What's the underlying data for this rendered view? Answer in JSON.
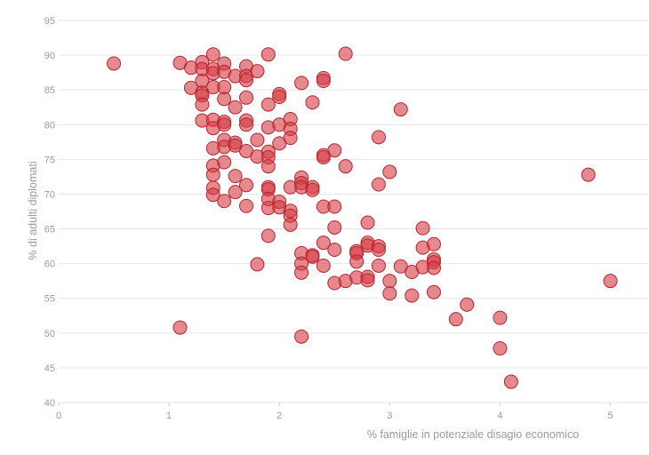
{
  "chart_data": {
    "type": "scatter",
    "xlabel": "% famiglie in potenziale disagio economico",
    "ylabel": "% di adulti diplomati",
    "xlim": [
      0,
      5.35
    ],
    "ylim": [
      40,
      95
    ],
    "x_ticks": [
      0,
      1,
      2,
      3,
      4,
      5
    ],
    "y_ticks": [
      40,
      45,
      50,
      55,
      60,
      65,
      70,
      75,
      80,
      85,
      90,
      95
    ],
    "grid": "horizontal",
    "point_color": "#d63a43",
    "point_stroke": "#b8232d",
    "points": [
      [
        0.5,
        88.8
      ],
      [
        1.1,
        88.9
      ],
      [
        1.1,
        50.8
      ],
      [
        1.2,
        88.2
      ],
      [
        1.2,
        85.3
      ],
      [
        1.3,
        89.0
      ],
      [
        1.3,
        88.0
      ],
      [
        1.3,
        86.3
      ],
      [
        1.3,
        84.6
      ],
      [
        1.3,
        84.2
      ],
      [
        1.3,
        82.9
      ],
      [
        1.3,
        80.6
      ],
      [
        1.4,
        90.1
      ],
      [
        1.4,
        88.0
      ],
      [
        1.4,
        87.4
      ],
      [
        1.4,
        85.4
      ],
      [
        1.4,
        80.7
      ],
      [
        1.4,
        79.5
      ],
      [
        1.4,
        76.6
      ],
      [
        1.4,
        74.1
      ],
      [
        1.4,
        72.8
      ],
      [
        1.4,
        70.9
      ],
      [
        1.4,
        69.9
      ],
      [
        1.5,
        88.8
      ],
      [
        1.5,
        87.6
      ],
      [
        1.5,
        85.4
      ],
      [
        1.5,
        83.7
      ],
      [
        1.5,
        80.4
      ],
      [
        1.5,
        80.0
      ],
      [
        1.5,
        77.8
      ],
      [
        1.5,
        76.8
      ],
      [
        1.5,
        74.6
      ],
      [
        1.5,
        69.0
      ],
      [
        1.6,
        87.0
      ],
      [
        1.6,
        82.5
      ],
      [
        1.6,
        77.4
      ],
      [
        1.6,
        77.0
      ],
      [
        1.6,
        72.6
      ],
      [
        1.6,
        70.3
      ],
      [
        1.7,
        88.4
      ],
      [
        1.7,
        87.0
      ],
      [
        1.7,
        86.4
      ],
      [
        1.7,
        83.9
      ],
      [
        1.7,
        80.6
      ],
      [
        1.7,
        80.0
      ],
      [
        1.7,
        76.2
      ],
      [
        1.7,
        71.3
      ],
      [
        1.7,
        68.3
      ],
      [
        1.8,
        87.7
      ],
      [
        1.8,
        77.8
      ],
      [
        1.8,
        75.4
      ],
      [
        1.8,
        59.9
      ],
      [
        1.9,
        90.1
      ],
      [
        1.9,
        82.9
      ],
      [
        1.9,
        79.6
      ],
      [
        1.9,
        76.1
      ],
      [
        1.9,
        75.3
      ],
      [
        1.9,
        74.0
      ],
      [
        1.9,
        71.0
      ],
      [
        1.9,
        70.7
      ],
      [
        1.9,
        69.3
      ],
      [
        1.9,
        68.0
      ],
      [
        1.9,
        64.0
      ],
      [
        2.0,
        84.4
      ],
      [
        2.0,
        84.0
      ],
      [
        2.0,
        80.0
      ],
      [
        2.0,
        77.3
      ],
      [
        2.0,
        68.9
      ],
      [
        2.0,
        68.1
      ],
      [
        2.1,
        80.8
      ],
      [
        2.1,
        79.4
      ],
      [
        2.1,
        78.1
      ],
      [
        2.1,
        71.0
      ],
      [
        2.1,
        67.6
      ],
      [
        2.1,
        66.9
      ],
      [
        2.1,
        65.6
      ],
      [
        2.2,
        86.0
      ],
      [
        2.2,
        72.4
      ],
      [
        2.2,
        71.6
      ],
      [
        2.2,
        71.0
      ],
      [
        2.2,
        61.5
      ],
      [
        2.2,
        60.0
      ],
      [
        2.2,
        58.7
      ],
      [
        2.2,
        49.5
      ],
      [
        2.3,
        83.2
      ],
      [
        2.3,
        71.0
      ],
      [
        2.3,
        70.6
      ],
      [
        2.3,
        61.2
      ],
      [
        2.3,
        61.0
      ],
      [
        2.4,
        86.7
      ],
      [
        2.4,
        86.3
      ],
      [
        2.4,
        75.6
      ],
      [
        2.4,
        75.3
      ],
      [
        2.4,
        68.2
      ],
      [
        2.4,
        63.0
      ],
      [
        2.4,
        59.7
      ],
      [
        2.5,
        76.3
      ],
      [
        2.5,
        68.2
      ],
      [
        2.5,
        65.2
      ],
      [
        2.5,
        62.0
      ],
      [
        2.5,
        57.2
      ],
      [
        2.6,
        90.2
      ],
      [
        2.6,
        74.0
      ],
      [
        2.6,
        57.5
      ],
      [
        2.7,
        61.8
      ],
      [
        2.7,
        61.5
      ],
      [
        2.7,
        60.3
      ],
      [
        2.7,
        58.0
      ],
      [
        2.8,
        65.9
      ],
      [
        2.8,
        63.0
      ],
      [
        2.8,
        62.6
      ],
      [
        2.8,
        58.1
      ],
      [
        2.8,
        57.6
      ],
      [
        2.9,
        78.2
      ],
      [
        2.9,
        71.4
      ],
      [
        2.9,
        62.5
      ],
      [
        2.9,
        62.0
      ],
      [
        2.9,
        59.7
      ],
      [
        3.0,
        73.2
      ],
      [
        3.0,
        57.5
      ],
      [
        3.0,
        55.7
      ],
      [
        3.1,
        82.2
      ],
      [
        3.1,
        59.6
      ],
      [
        3.2,
        58.8
      ],
      [
        3.2,
        55.4
      ],
      [
        3.3,
        65.1
      ],
      [
        3.3,
        62.3
      ],
      [
        3.3,
        59.5
      ],
      [
        3.4,
        62.8
      ],
      [
        3.4,
        60.6
      ],
      [
        3.4,
        60.2
      ],
      [
        3.4,
        59.4
      ],
      [
        3.4,
        55.9
      ],
      [
        3.6,
        52.0
      ],
      [
        3.7,
        54.1
      ],
      [
        4.0,
        52.2
      ],
      [
        4.0,
        47.8
      ],
      [
        4.1,
        43.0
      ],
      [
        4.8,
        72.8
      ],
      [
        5.0,
        57.5
      ]
    ]
  }
}
